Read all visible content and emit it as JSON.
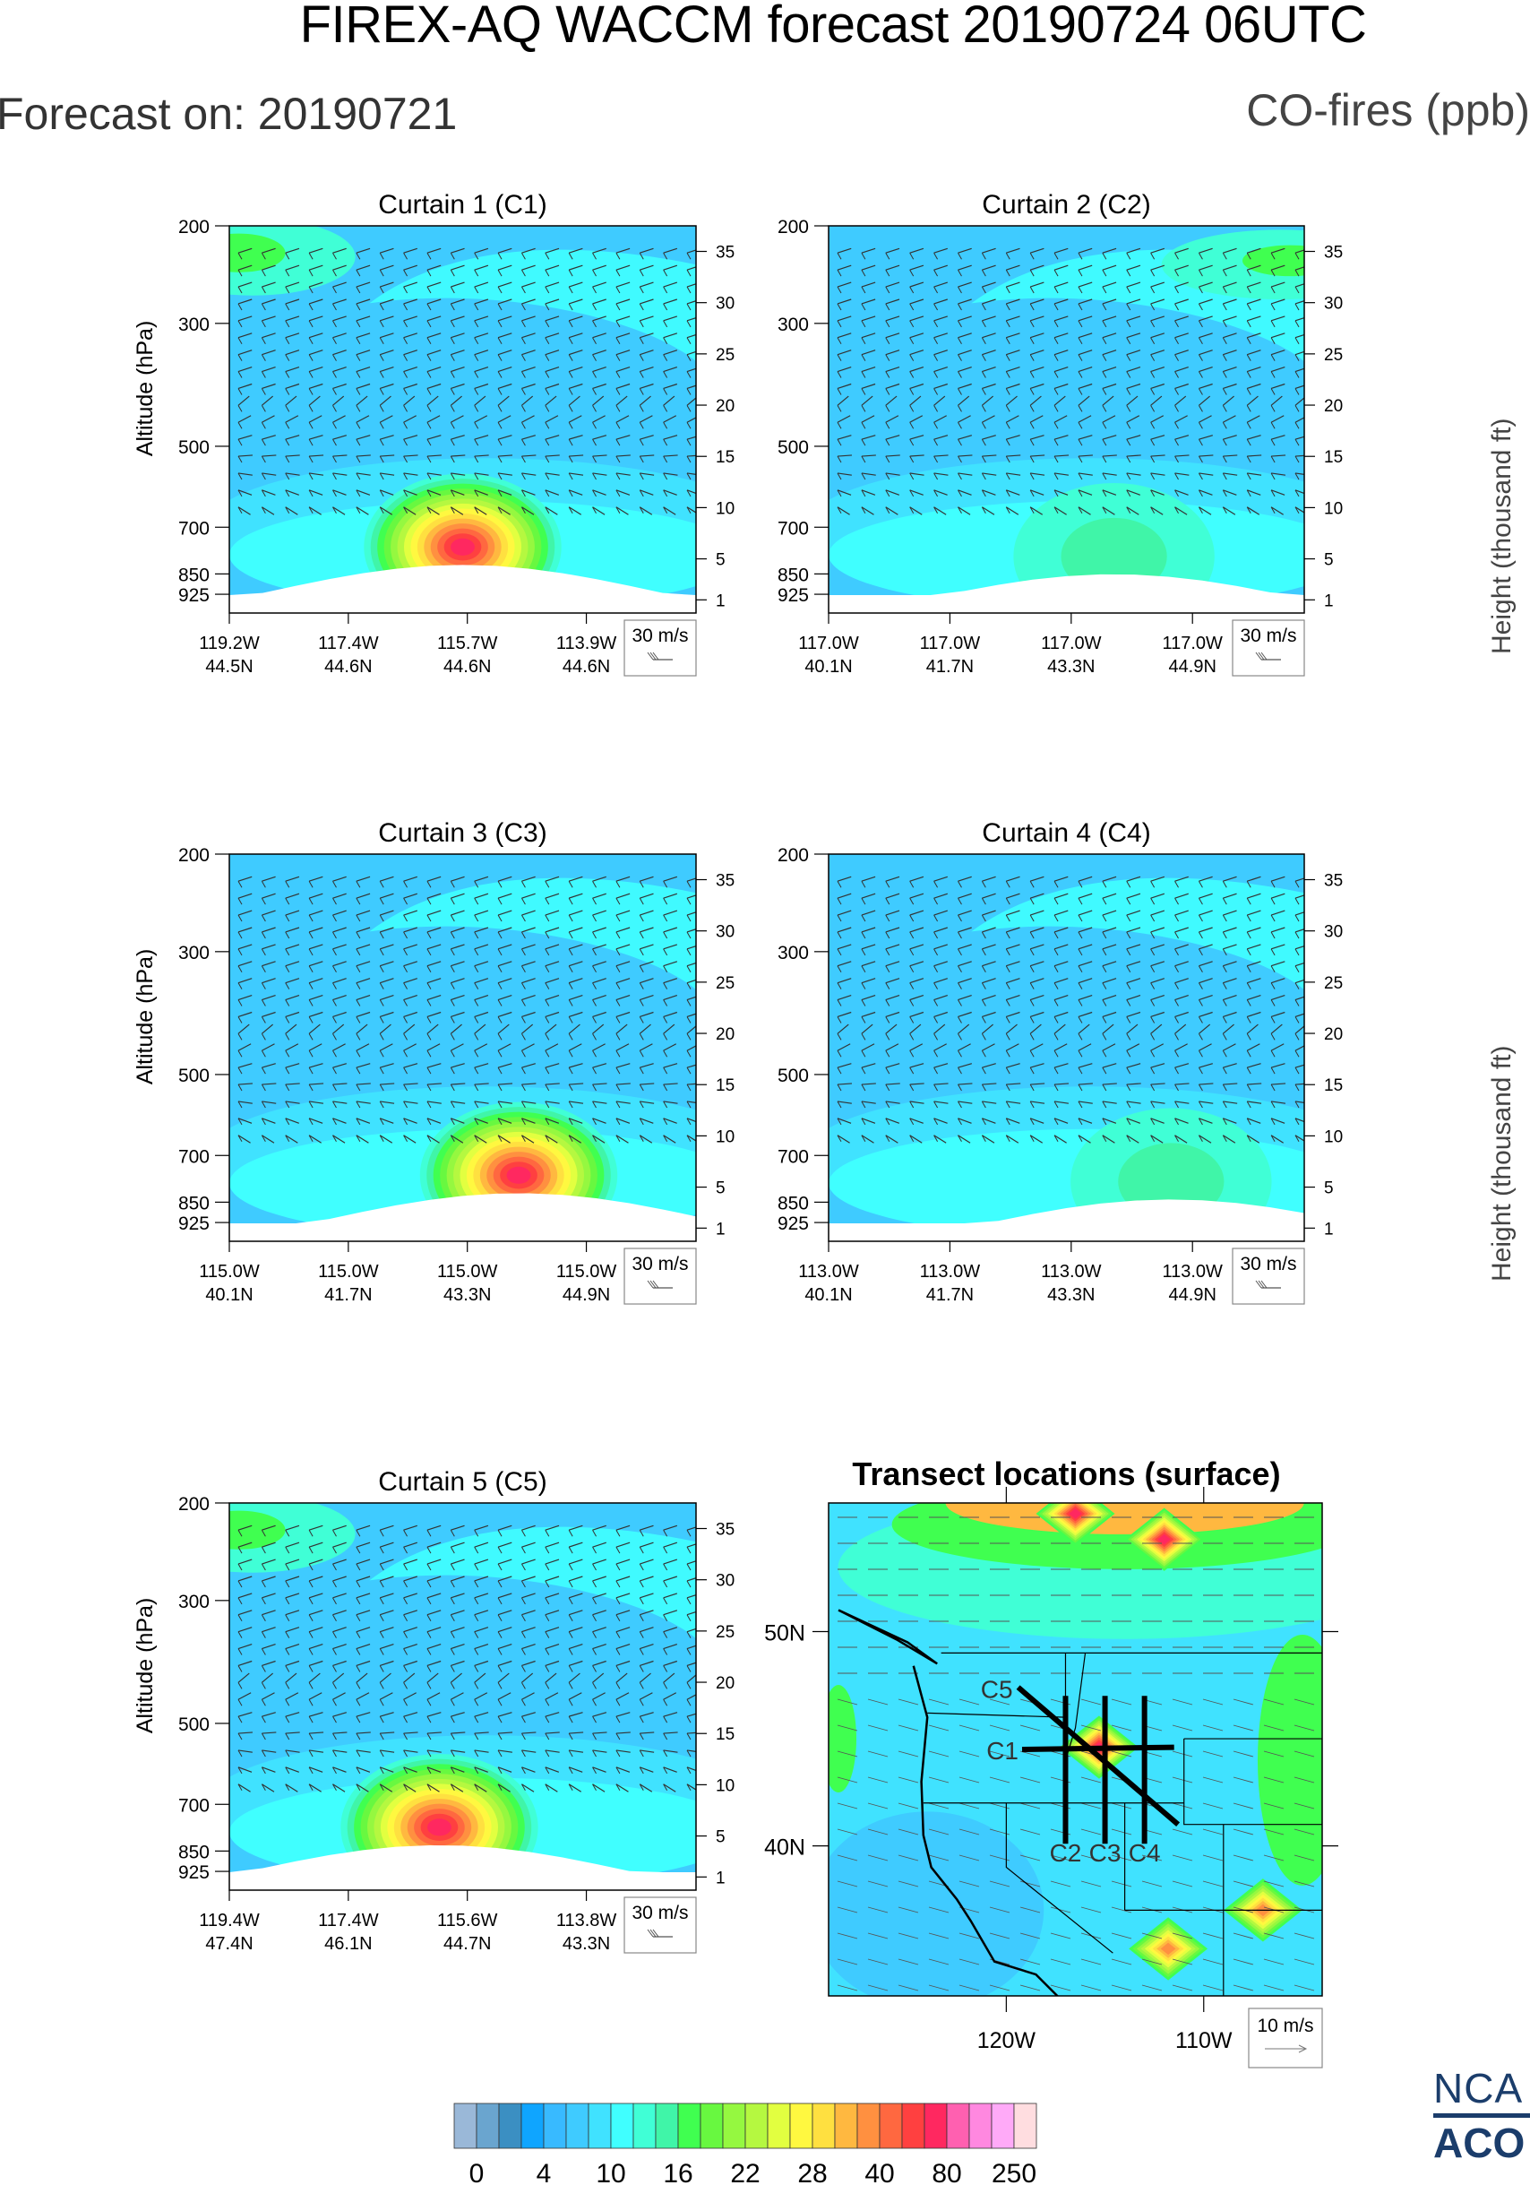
{
  "header": {
    "title": "FIREX-AQ WACCM forecast 20190724 06UTC",
    "forecast_on": "Forecast on: 20190721",
    "units": "CO-fires (ppb)"
  },
  "right_axis_label": "Height (thousand ft)",
  "left_axis_label": "Altitude (hPa)",
  "wind_legend": {
    "label": "30 m/s"
  },
  "logo": {
    "line1": "NCA",
    "line2": "ACO"
  },
  "colors": {
    "levels": [
      "#9ab8d8",
      "#6aa5cf",
      "#3b8fc2",
      "#0fa5ff",
      "#38baff",
      "#3fcbff",
      "#40e2ff",
      "#40ffff",
      "#40ffd6",
      "#40f5a8",
      "#40ff50",
      "#68f840",
      "#95f840",
      "#b5f840",
      "#e2ff40",
      "#fff840",
      "#ffe040",
      "#ffb840",
      "#ff9040",
      "#ff6840",
      "#ff4040",
      "#ff2860",
      "#ff60b0",
      "#ff88e0",
      "#ffaaf8",
      "#ffdde0"
    ]
  },
  "chart_data": [
    {
      "type": "heatmap",
      "title": "Curtain 1 (C1)",
      "ylabel": "Altitude (hPa)",
      "y2label": "Height (thousand ft)",
      "yticks": [
        "200",
        "300",
        "500",
        "700",
        "850",
        "925"
      ],
      "y2ticks": [
        "35",
        "30",
        "25",
        "20",
        "15",
        "10",
        "5",
        "1"
      ],
      "xticks": [
        [
          "119.2W",
          "44.5N"
        ],
        [
          "117.4W",
          "44.6N"
        ],
        [
          "115.7W",
          "44.6N"
        ],
        [
          "113.9W",
          "44.6N"
        ]
      ],
      "plume": {
        "center": 0.5,
        "peak_ppb": 80,
        "bottom_hpa": 760
      },
      "wind_legend": "30 m/s"
    },
    {
      "type": "heatmap",
      "title": "Curtain 2 (C2)",
      "yticks": [
        "200",
        "300",
        "500",
        "700",
        "850",
        "925"
      ],
      "y2ticks": [
        "35",
        "30",
        "25",
        "20",
        "15",
        "10",
        "5",
        "1"
      ],
      "xticks": [
        [
          "117.0W",
          "40.1N"
        ],
        [
          "117.0W",
          "41.7N"
        ],
        [
          "117.0W",
          "43.3N"
        ],
        [
          "117.0W",
          "44.9N"
        ]
      ],
      "plume": {
        "center": 0.6,
        "peak_ppb": 16,
        "bottom_hpa": 790
      },
      "wind_legend": "30 m/s"
    },
    {
      "type": "heatmap",
      "title": "Curtain 3 (C3)",
      "ylabel": "Altitude (hPa)",
      "yticks": [
        "200",
        "300",
        "500",
        "700",
        "850",
        "925"
      ],
      "y2ticks": [
        "35",
        "30",
        "25",
        "20",
        "15",
        "10",
        "5",
        "1"
      ],
      "xticks": [
        [
          "115.0W",
          "40.1N"
        ],
        [
          "115.0W",
          "41.7N"
        ],
        [
          "115.0W",
          "43.3N"
        ],
        [
          "115.0W",
          "44.9N"
        ]
      ],
      "plume": {
        "center": 0.62,
        "peak_ppb": 80,
        "bottom_hpa": 760
      },
      "wind_legend": "30 m/s"
    },
    {
      "type": "heatmap",
      "title": "Curtain 4 (C4)",
      "yticks": [
        "200",
        "300",
        "500",
        "700",
        "850",
        "925"
      ],
      "y2ticks": [
        "35",
        "30",
        "25",
        "20",
        "15",
        "10",
        "5",
        "1"
      ],
      "xticks": [
        [
          "113.0W",
          "40.1N"
        ],
        [
          "113.0W",
          "41.7N"
        ],
        [
          "113.0W",
          "43.3N"
        ],
        [
          "113.0W",
          "44.9N"
        ]
      ],
      "plume": {
        "center": 0.72,
        "peak_ppb": 16,
        "bottom_hpa": 780
      },
      "wind_legend": "30 m/s"
    },
    {
      "type": "heatmap",
      "title": "Curtain 5 (C5)",
      "ylabel": "Altitude (hPa)",
      "yticks": [
        "200",
        "300",
        "500",
        "700",
        "850",
        "925"
      ],
      "y2ticks": [
        "35",
        "30",
        "25",
        "20",
        "15",
        "10",
        "5",
        "1"
      ],
      "xticks": [
        [
          "119.4W",
          "47.4N"
        ],
        [
          "117.4W",
          "46.1N"
        ],
        [
          "115.6W",
          "44.7N"
        ],
        [
          "113.8W",
          "43.3N"
        ]
      ],
      "plume": {
        "center": 0.45,
        "peak_ppb": 80,
        "bottom_hpa": 770
      },
      "wind_legend": "30 m/s"
    },
    {
      "type": "heatmap",
      "title": "Transect locations (surface)",
      "xticks": [
        "120W",
        "110W"
      ],
      "yticks": [
        "50N",
        "40N"
      ],
      "lon_range": [
        -129,
        -104
      ],
      "lat_range": [
        33,
        56
      ],
      "transects": [
        {
          "label": "C1",
          "from": [
            -119.2,
            44.5
          ],
          "to": [
            -111.5,
            44.6
          ]
        },
        {
          "label": "C2",
          "from": [
            -117.0,
            47.0
          ],
          "to": [
            -117.0,
            40.1
          ]
        },
        {
          "label": "C3",
          "from": [
            -115.0,
            47.0
          ],
          "to": [
            -115.0,
            40.1
          ]
        },
        {
          "label": "C4",
          "from": [
            -113.0,
            47.0
          ],
          "to": [
            -113.0,
            40.1
          ]
        },
        {
          "label": "C5",
          "from": [
            -119.4,
            47.4
          ],
          "to": [
            -111.3,
            41.0
          ]
        }
      ],
      "hotspots": [
        {
          "lon": -115.3,
          "lat": 44.6,
          "ppb": 80
        },
        {
          "lon": -111.8,
          "lat": 35.2,
          "ppb": 40
        },
        {
          "lon": -107.0,
          "lat": 37.0,
          "ppb": 40
        },
        {
          "lon": -116.5,
          "lat": 55.5,
          "ppb": 80
        },
        {
          "lon": -112.0,
          "lat": 54.3,
          "ppb": 80
        }
      ],
      "wind_legend": "10 m/s"
    }
  ],
  "colorbar": {
    "labels": [
      "0",
      "4",
      "10",
      "16",
      "22",
      "28",
      "40",
      "80",
      "250"
    ],
    "boxes": 26
  }
}
